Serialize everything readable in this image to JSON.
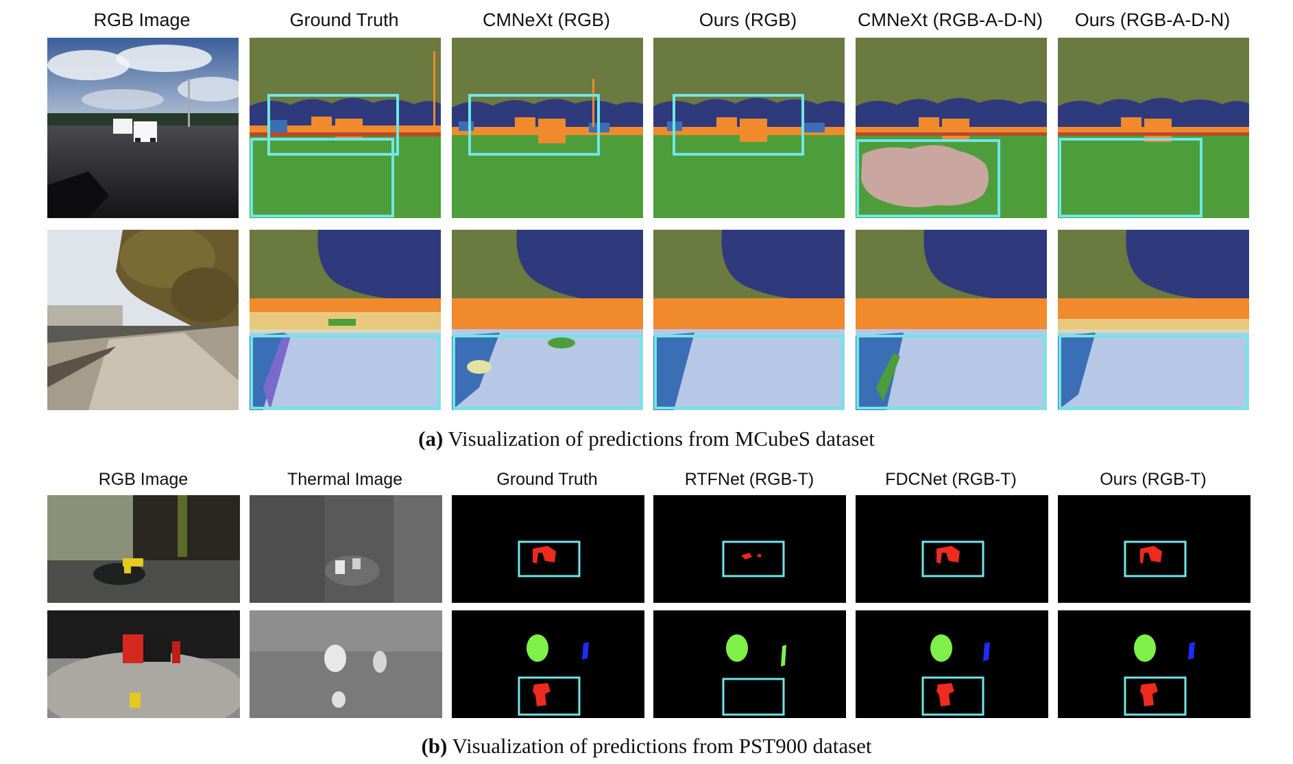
{
  "section_a": {
    "columns": [
      "RGB Image",
      "Ground Truth",
      "CMNeXt (RGB)",
      "Ours (RGB)",
      "CMNeXt (RGB-A-D-N)",
      "Ours (RGB-A-D-N)"
    ],
    "caption_tag": "(a)",
    "caption_text": "Visualization of predictions from MCubeS dataset"
  },
  "section_b": {
    "columns": [
      "RGB Image",
      "Thermal Image",
      "Ground Truth",
      "RTFNet (RGB-T)",
      "FDCNet (RGB-T)",
      "Ours (RGB-T)"
    ],
    "caption_tag": "(b)",
    "caption_text": "Visualization of predictions from PST900 dataset"
  },
  "colors": {
    "sky": "#6b7a3f",
    "tree": "#2f3a7d",
    "building": "#f08a2d",
    "road": "#4d9e3a",
    "ground": "#b7c7e6",
    "error": "#c9a6a0",
    "highlight_box": "#6fe6ea",
    "mask_red": "#ef2a1e",
    "mask_green": "#7ff04a",
    "mask_blue": "#1e2cff"
  }
}
